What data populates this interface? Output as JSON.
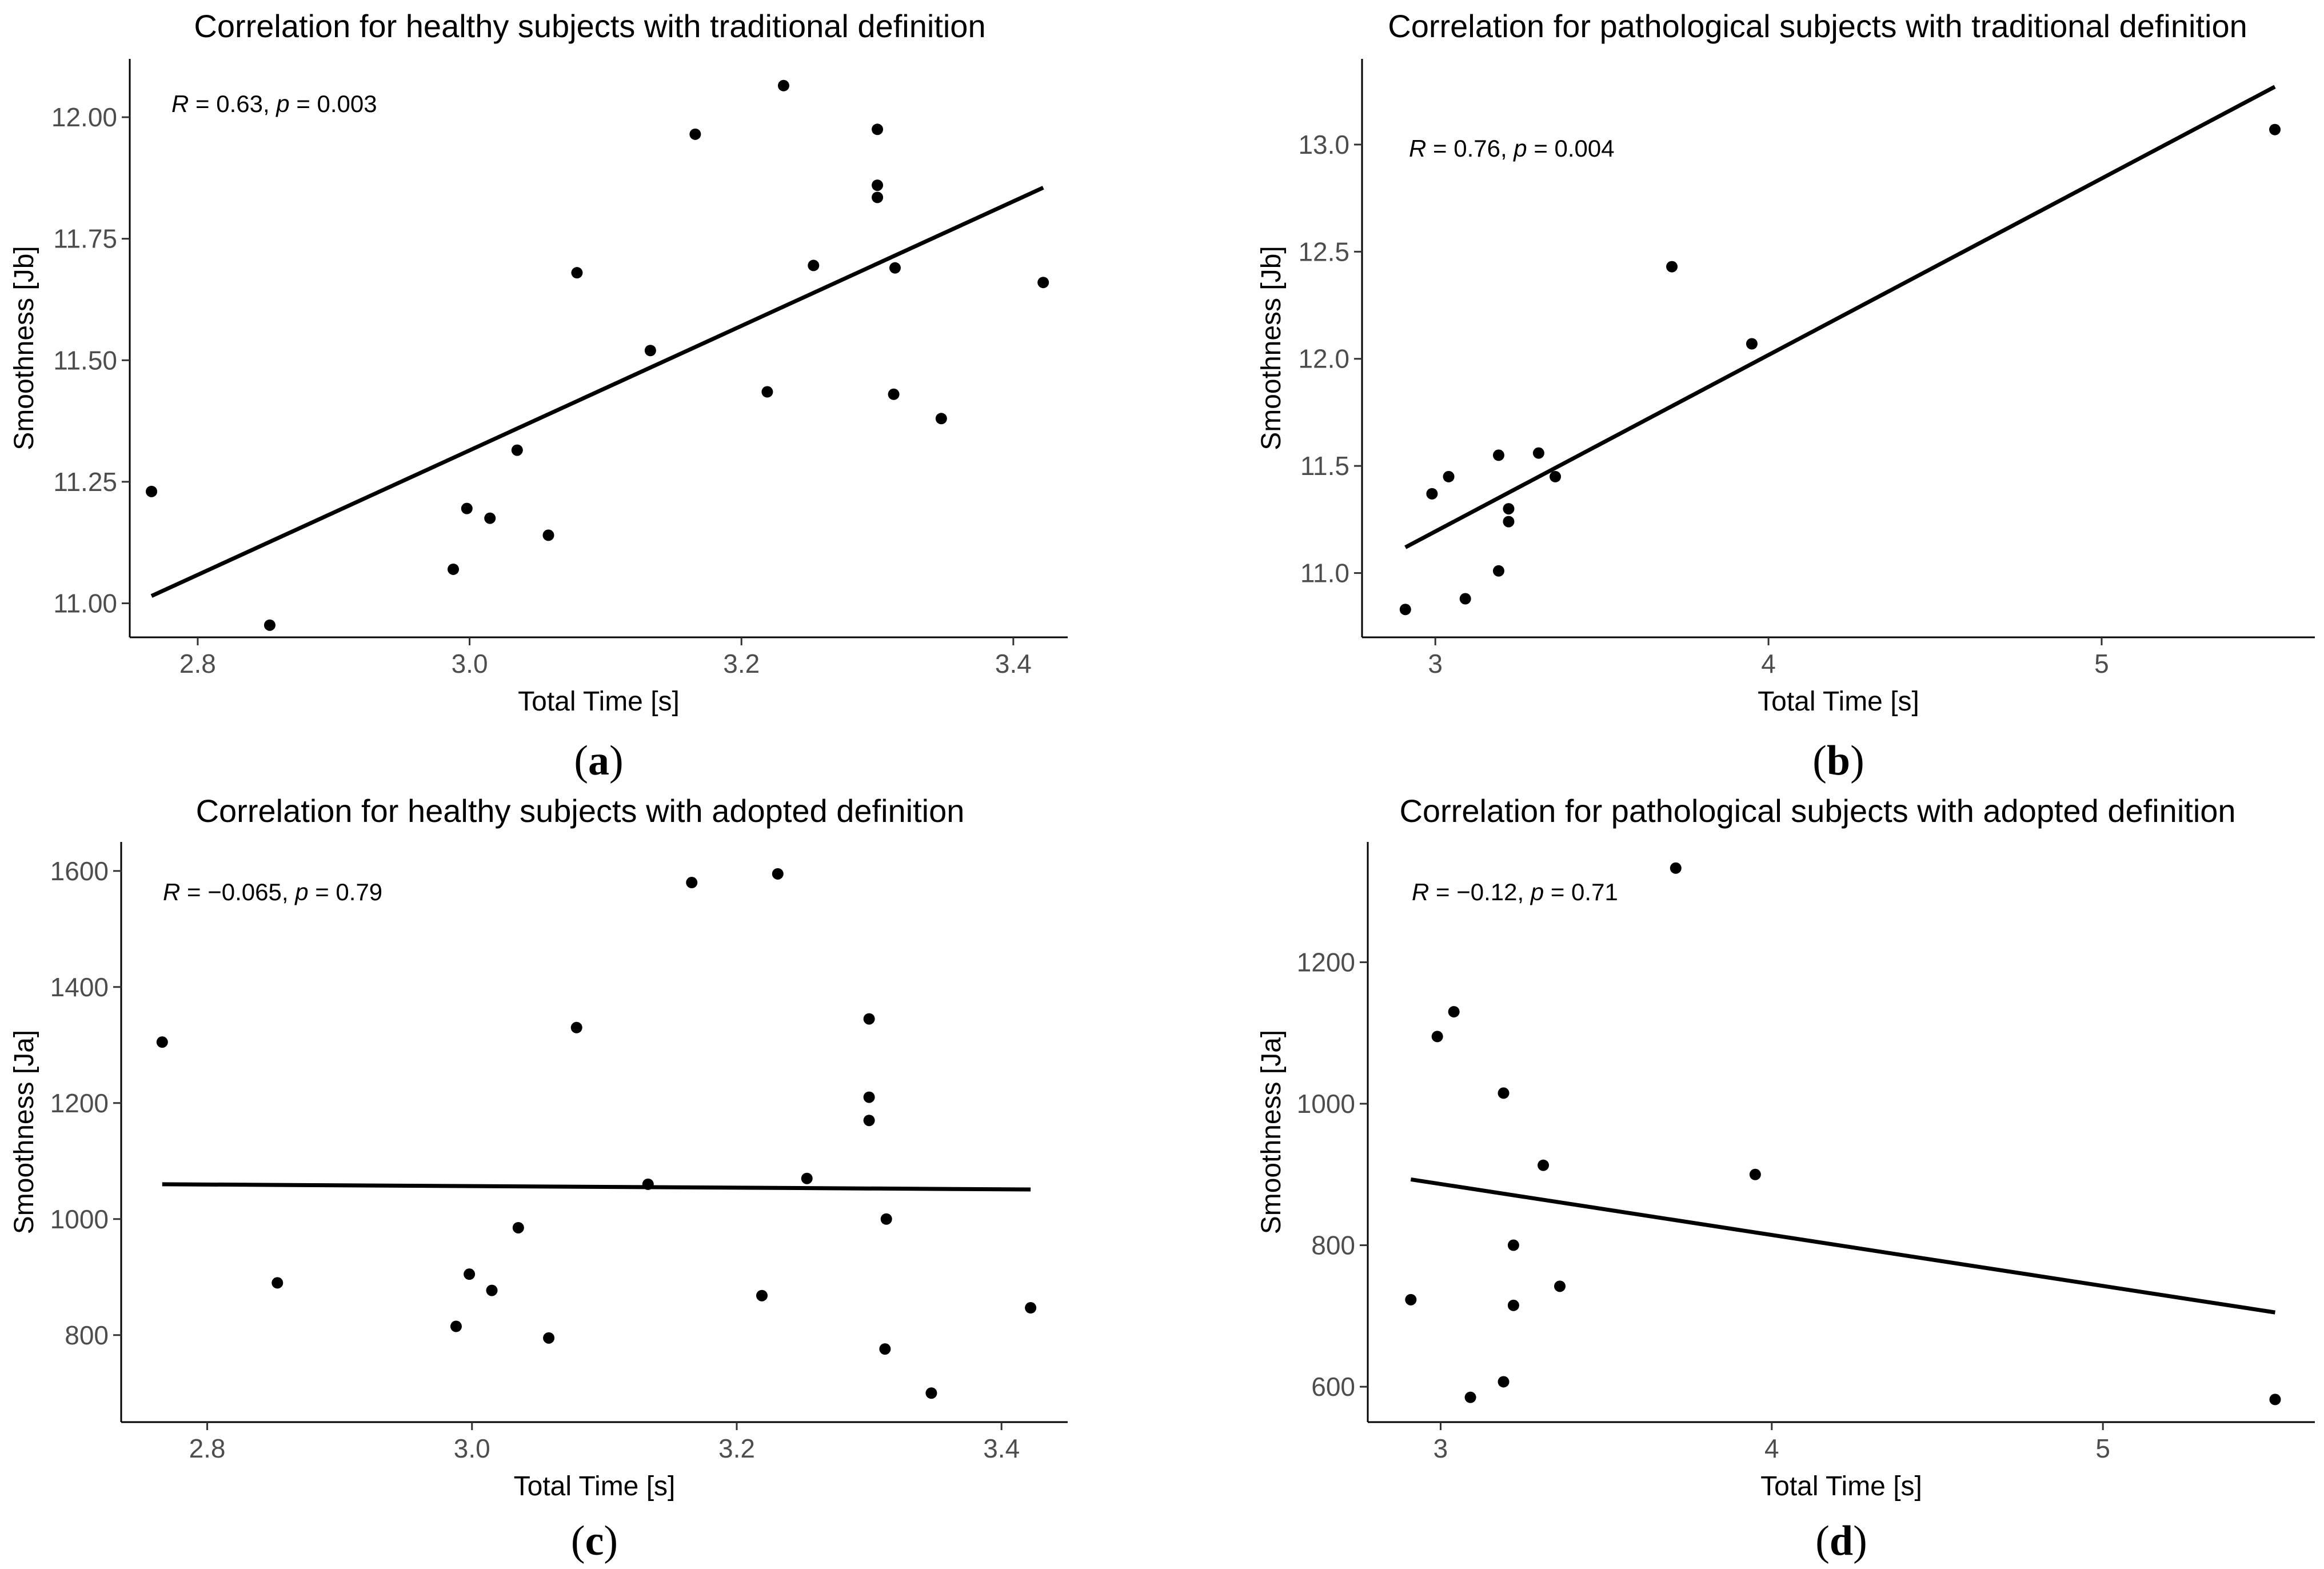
{
  "chart_data": [
    {
      "type": "scatter",
      "title": "Correlation for healthy subjects with traditional definition",
      "xlabel": "Total Time [s]",
      "ylabel": "Smoothness [Jb]",
      "panel_label": "a",
      "annotation": {
        "R": "0.63",
        "p": "0.003"
      },
      "xlim": [
        2.75,
        3.44
      ],
      "ylim": [
        10.93,
        12.12
      ],
      "xticks": [
        2.8,
        3.0,
        3.2,
        3.4
      ],
      "xtick_labels": [
        "2.8",
        "3.0",
        "3.2",
        "3.4"
      ],
      "yticks": [
        11.0,
        11.25,
        11.5,
        11.75,
        12.0
      ],
      "ytick_labels": [
        "11.00",
        "11.25",
        "11.50",
        "11.75",
        "12.00"
      ],
      "points": [
        [
          2.766,
          11.23
        ],
        [
          2.853,
          10.955
        ],
        [
          2.988,
          11.07
        ],
        [
          2.998,
          11.195
        ],
        [
          3.015,
          11.175
        ],
        [
          3.035,
          11.315
        ],
        [
          3.058,
          11.14
        ],
        [
          3.079,
          11.68
        ],
        [
          3.133,
          11.52
        ],
        [
          3.166,
          11.965
        ],
        [
          3.219,
          11.435
        ],
        [
          3.231,
          12.065
        ],
        [
          3.253,
          11.695
        ],
        [
          3.3,
          11.975
        ],
        [
          3.3,
          11.86
        ],
        [
          3.3,
          11.835
        ],
        [
          3.313,
          11.69
        ],
        [
          3.312,
          11.43
        ],
        [
          3.347,
          11.38
        ],
        [
          3.422,
          11.66
        ]
      ],
      "fit_line": [
        [
          2.766,
          11.015
        ],
        [
          3.422,
          11.855
        ]
      ]
    },
    {
      "type": "scatter",
      "title": "Correlation for pathological subjects with traditional definition",
      "xlabel": "Total Time [s]",
      "ylabel": "Smoothness [Jb]",
      "panel_label": "b",
      "annotation": {
        "R": "0.76",
        "p": "0.004"
      },
      "xlim": [
        2.78,
        5.64
      ],
      "ylim": [
        10.7,
        13.4
      ],
      "xticks": [
        3,
        4,
        5
      ],
      "xtick_labels": [
        "3",
        "4",
        "5"
      ],
      "yticks": [
        11.0,
        11.5,
        12.0,
        12.5,
        13.0
      ],
      "ytick_labels": [
        "11.0",
        "11.5",
        "12.0",
        "12.5",
        "13.0"
      ],
      "points": [
        [
          2.91,
          10.83
        ],
        [
          2.99,
          11.37
        ],
        [
          3.04,
          11.45
        ],
        [
          3.09,
          10.88
        ],
        [
          3.19,
          11.55
        ],
        [
          3.19,
          11.01
        ],
        [
          3.22,
          11.3
        ],
        [
          3.22,
          11.24
        ],
        [
          3.31,
          11.56
        ],
        [
          3.36,
          11.45
        ],
        [
          3.71,
          12.43
        ],
        [
          3.95,
          12.07
        ],
        [
          5.52,
          13.07
        ]
      ],
      "fit_line": [
        [
          2.91,
          11.12
        ],
        [
          5.52,
          13.27
        ]
      ]
    },
    {
      "type": "scatter",
      "title": "Correlation for healthy subjects with adopted definition",
      "xlabel": "Total Time [s]",
      "ylabel": "Smoothness [Ja]",
      "panel_label": "c",
      "annotation": {
        "R": "−0.065",
        "p": "0.79"
      },
      "xlim": [
        2.735,
        3.45
      ],
      "ylim": [
        650,
        1650
      ],
      "xticks": [
        2.8,
        3.0,
        3.2,
        3.4
      ],
      "xtick_labels": [
        "2.8",
        "3.0",
        "3.2",
        "3.4"
      ],
      "yticks": [
        800,
        1000,
        1200,
        1400,
        1600
      ],
      "ytick_labels": [
        "800",
        "1000",
        "1200",
        "1400",
        "1600"
      ],
      "points": [
        [
          2.766,
          1305
        ],
        [
          2.853,
          890
        ],
        [
          2.988,
          815
        ],
        [
          2.998,
          905
        ],
        [
          3.015,
          877
        ],
        [
          3.035,
          985
        ],
        [
          3.058,
          795
        ],
        [
          3.079,
          1330
        ],
        [
          3.133,
          1060
        ],
        [
          3.166,
          1580
        ],
        [
          3.219,
          868
        ],
        [
          3.231,
          1595
        ],
        [
          3.253,
          1070
        ],
        [
          3.3,
          1345
        ],
        [
          3.3,
          1210
        ],
        [
          3.3,
          1170
        ],
        [
          3.313,
          1000
        ],
        [
          3.312,
          776
        ],
        [
          3.347,
          700
        ],
        [
          3.422,
          847
        ]
      ],
      "fit_line": [
        [
          2.766,
          1060
        ],
        [
          3.422,
          1051
        ]
      ]
    },
    {
      "type": "scatter",
      "title": "Correlation for pathological subjects with adopted definition",
      "xlabel": "Total Time [s]",
      "ylabel": "Smoothness [Ja]",
      "panel_label": "d",
      "annotation": {
        "R": "−0.12",
        "p": "0.71"
      },
      "xlim": [
        2.78,
        5.64
      ],
      "ylim": [
        550,
        1370
      ],
      "xticks": [
        3,
        4,
        5
      ],
      "xtick_labels": [
        "3",
        "4",
        "5"
      ],
      "yticks": [
        600,
        800,
        1000,
        1200
      ],
      "ytick_labels": [
        "600",
        "800",
        "1000",
        "1200"
      ],
      "points": [
        [
          2.91,
          723
        ],
        [
          2.99,
          1095
        ],
        [
          3.04,
          1130
        ],
        [
          3.09,
          585
        ],
        [
          3.19,
          1015
        ],
        [
          3.19,
          607
        ],
        [
          3.22,
          800
        ],
        [
          3.22,
          715
        ],
        [
          3.31,
          913
        ],
        [
          3.36,
          742
        ],
        [
          3.71,
          1333
        ],
        [
          3.95,
          900
        ],
        [
          5.52,
          582
        ]
      ],
      "fit_line": [
        [
          2.91,
          893
        ],
        [
          5.52,
          705
        ]
      ]
    }
  ]
}
